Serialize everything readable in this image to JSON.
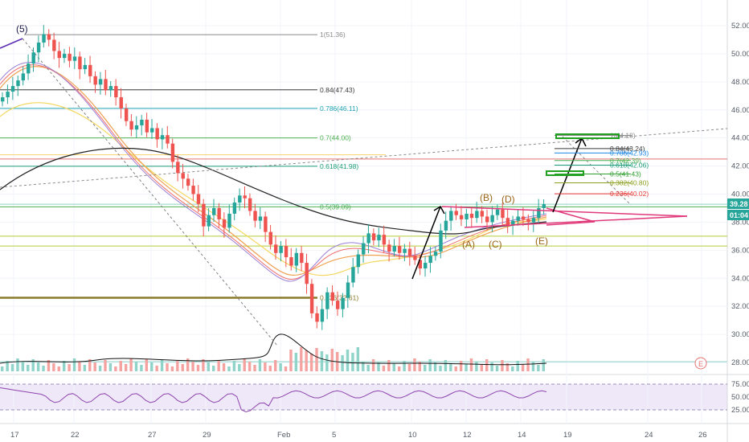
{
  "chart_data": {
    "type": "candlestick",
    "symbol_last_price": "39.28",
    "countdown": "01:04",
    "y_axis": {
      "range": [
        27.4,
        53.2
      ],
      "ticks": [
        "28.00",
        "30.00",
        "32.00",
        "34.00",
        "36.00",
        "38.00",
        "40.00",
        "42.00",
        "44.00",
        "46.00",
        "48.00",
        "50.00",
        "52.00"
      ]
    },
    "x_axis": {
      "ticks": [
        "17",
        "22",
        "27",
        "29",
        "Feb",
        "5",
        "10",
        "12",
        "14",
        "19",
        "24",
        "26"
      ]
    },
    "fib_upper": [
      {
        "label": "1(51.36)",
        "value": 51.36,
        "color": "#8a8a8a"
      },
      {
        "label": "0.84(47.43)",
        "value": 47.43,
        "color": "#3a3a3a"
      },
      {
        "label": "0.786(46.11)",
        "value": 46.11,
        "color": "#1ea3b4"
      },
      {
        "label": "0.7(44.00)",
        "value": 44.0,
        "color": "#4caf50"
      },
      {
        "label": "0.618(41.98)",
        "value": 41.98,
        "color": "#1b9e77"
      },
      {
        "label": "0.5(39.09)",
        "value": 39.09,
        "color": "#4caf50"
      },
      {
        "label": "0.236(32.61)",
        "value": 32.61,
        "color": "#8a7a2a"
      }
    ],
    "fib_target": [
      {
        "label": "1(44.18)",
        "value": 44.18,
        "color": "#8a8a8a"
      },
      {
        "label": "0.84(43.24)",
        "value": 43.24,
        "color": "#3a3a3a"
      },
      {
        "label": "0.786(42.93)",
        "value": 42.93,
        "color": "#1e88e5"
      },
      {
        "label": "0.7(42.39)",
        "value": 42.39,
        "color": "#4caf50"
      },
      {
        "label": "0.618(42.06)",
        "value": 42.06,
        "color": "#1b9e77"
      },
      {
        "label": "0.5(41.43)",
        "value": 41.43,
        "color": "#2e9e2e"
      },
      {
        "label": "0.382(40.80)",
        "value": 40.8,
        "color": "#8aa020"
      },
      {
        "label": "0.236(40.02)",
        "value": 40.02,
        "color": "#e53935"
      }
    ],
    "wave_labels": [
      "(5)",
      "(A)",
      "(B)",
      "(C)",
      "(D)",
      "(E)"
    ],
    "rsi": {
      "ticks": [
        "75.00",
        "50.00",
        "25.00"
      ],
      "range": [
        15,
        85
      ]
    },
    "volume_badge": "E",
    "series": [
      {
        "name": "",
        "values": [
          46.9,
          47.3,
          47.7,
          48.1,
          48.6,
          49.3,
          50.1,
          50.8,
          51.4,
          51.0,
          50.2,
          49.7,
          50.0,
          49.5,
          49.8,
          48.9,
          49.2,
          48.4,
          47.8,
          48.2,
          47.4,
          47.7,
          46.9,
          46.1,
          45.2,
          44.6,
          44.9,
          45.3,
          44.4,
          44.7,
          43.9,
          44.2,
          43.6,
          42.3,
          41.5,
          41.1,
          40.6,
          40.0,
          39.3,
          37.7,
          38.5,
          39.0,
          38.2,
          37.6,
          38.6,
          39.4,
          39.9,
          39.7,
          38.8,
          38.1,
          38.4,
          37.3,
          36.4,
          35.8,
          36.3,
          35.5,
          34.9,
          35.8,
          35.1,
          33.6,
          31.5,
          30.9,
          31.8,
          33.0,
          32.4,
          31.8,
          32.6,
          33.7,
          34.8,
          35.7,
          36.5,
          37.2,
          36.7,
          37.1,
          36.4,
          35.9,
          36.3,
          35.8,
          36.1,
          35.6,
          35.3,
          34.7,
          35.1,
          35.6,
          35.9,
          37.4,
          38.1,
          38.8,
          38.5,
          38.2,
          38.6,
          38.3,
          38.8,
          38.4,
          38.0,
          38.5,
          38.9,
          38.3,
          37.8,
          38.1,
          38.4,
          38.2,
          38.0,
          38.3,
          39.0,
          39.28
        ]
      }
    ]
  }
}
